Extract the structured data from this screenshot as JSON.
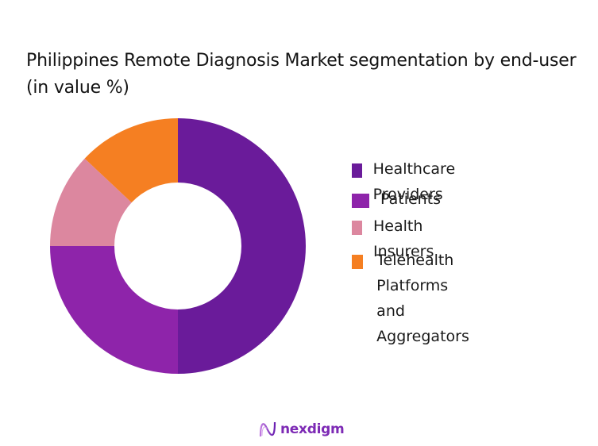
{
  "title": "Philippines Remote Diagnosis Market segmentation by end-user (in value %)",
  "legend": {
    "items": [
      {
        "label": "Healthcare Providers",
        "color": "#6a1b9a"
      },
      {
        "label": "Patients",
        "color": "#8e24aa"
      },
      {
        "label": "Health Insurers",
        "color": "#dc879f"
      },
      {
        "label": "Telehealth Platforms\nand Aggregators",
        "color": "#f57f22"
      }
    ]
  },
  "logo": {
    "icon": "wave-n-logo-icon",
    "text": "nexdigm"
  },
  "chart_data": {
    "type": "pie",
    "variant": "donut",
    "title": "Philippines Remote Diagnosis Market segmentation by end-user (in value %)",
    "categories": [
      "Healthcare Providers",
      "Patients",
      "Health Insurers",
      "Telehealth Platforms and Aggregators"
    ],
    "values": [
      50,
      25,
      12,
      13
    ],
    "unit": "%",
    "colors": [
      "#6a1b9a",
      "#8e24aa",
      "#dc879f",
      "#f57f22"
    ],
    "start_angle": "12 o'clock, clockwise",
    "data_labels": false,
    "legend_position": "right"
  }
}
